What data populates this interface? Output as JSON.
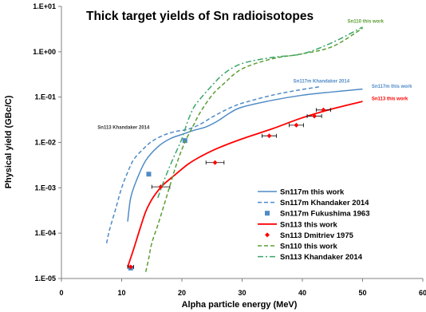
{
  "chart_data": {
    "type": "line",
    "title": "Thick target yields of Sn radioisotopes",
    "xlabel": "Alpha particle energy (MeV)",
    "ylabel": "Physical yield (GBc/C)",
    "xlim": [
      0,
      60
    ],
    "ylim": [
      1e-05,
      10
    ],
    "y_scale": "log",
    "grid": false,
    "legend_position": "bottom-right",
    "x_ticks": [
      "0",
      "10",
      "20",
      "30",
      "40",
      "50",
      "60"
    ],
    "y_ticks": [
      "1.E-05",
      "1.E-04",
      "1.E-03",
      "1.E-02",
      "1.E-01",
      "1.E+00",
      "1.E+01"
    ],
    "series": [
      {
        "name": "Sn117m this work",
        "style": "solid",
        "color": "#4f8bc6",
        "x": [
          11,
          11.5,
          12.5,
          14,
          16,
          18,
          20,
          22,
          24,
          26,
          28,
          30,
          35,
          40,
          45,
          50
        ],
        "y": [
          0.00018,
          0.0006,
          0.0015,
          0.004,
          0.008,
          0.012,
          0.015,
          0.0185,
          0.022,
          0.03,
          0.045,
          0.06,
          0.085,
          0.11,
          0.13,
          0.15
        ]
      },
      {
        "name": "Sn117m Khandaker 2014",
        "style": "dash",
        "color": "#4f8bc6",
        "x": [
          7.5,
          8,
          9,
          10,
          11,
          12,
          13.5,
          15,
          17,
          19,
          21,
          23,
          25,
          27,
          29,
          31,
          35,
          39,
          43
        ],
        "y": [
          6e-05,
          0.00012,
          0.00034,
          0.001,
          0.0022,
          0.0042,
          0.007,
          0.0105,
          0.0145,
          0.0175,
          0.0195,
          0.025,
          0.036,
          0.05,
          0.066,
          0.08,
          0.11,
          0.14,
          0.17
        ]
      },
      {
        "name": "Sn117m Fukushima 1963",
        "style": "markers",
        "marker": "square",
        "color": "#4f8bc6",
        "x": [
          11.5,
          14.5,
          20.5
        ],
        "y": [
          1.7e-05,
          0.002,
          0.011
        ]
      },
      {
        "name": "Sn113 this work",
        "style": "solid",
        "color": "#ff0000",
        "x": [
          11,
          12,
          13,
          14,
          15,
          16,
          17,
          19,
          21,
          23,
          26,
          30,
          35,
          40,
          45,
          50
        ],
        "y": [
          1.8e-05,
          4.5e-05,
          0.00012,
          0.0003,
          0.00055,
          0.00085,
          0.0012,
          0.002,
          0.0033,
          0.0048,
          0.0075,
          0.012,
          0.02,
          0.035,
          0.055,
          0.08
        ]
      },
      {
        "name": "Sn113 Dmitriev 1975",
        "style": "markers",
        "marker": "diamond",
        "color": "#ff0000",
        "x": [
          11.5,
          16.5,
          25.5,
          34.5,
          39,
          42,
          43.5
        ],
        "y": [
          1.8e-05,
          0.00105,
          0.0036,
          0.014,
          0.024,
          0.038,
          0.052
        ],
        "x_err": [
          0.5,
          1.5,
          1.5,
          1.2,
          1.2,
          1.2,
          1.2
        ]
      },
      {
        "name": "Sn110 this work",
        "style": "dash",
        "color": "#5a9e32",
        "x": [
          14,
          14.5,
          15,
          16,
          17,
          18,
          19,
          20,
          21,
          22,
          23,
          25,
          27,
          30,
          35,
          40,
          45,
          50
        ],
        "y": [
          1.4e-05,
          2.8e-05,
          6e-05,
          0.00015,
          0.0004,
          0.0011,
          0.003,
          0.007,
          0.014,
          0.025,
          0.045,
          0.11,
          0.2,
          0.42,
          0.7,
          0.9,
          1.3,
          3.3
        ]
      },
      {
        "name": "Sn113 Khandaker 2014",
        "style": "dashdot",
        "color": "#3aa66b",
        "x": [
          16,
          17,
          18,
          19,
          20,
          21,
          22,
          23,
          25,
          27,
          30,
          35,
          40,
          45,
          50
        ],
        "y": [
          0.0006,
          0.0014,
          0.003,
          0.006,
          0.012,
          0.03,
          0.06,
          0.09,
          0.18,
          0.33,
          0.55,
          0.75,
          0.9,
          1.6,
          3.5
        ]
      }
    ],
    "annotations": [
      {
        "text": "Sn110 this work",
        "x": 47.5,
        "y": 4.4,
        "color": "#5a9e32"
      },
      {
        "text": "Sn117m Khandaker 2014",
        "x": 38.5,
        "y": 0.21,
        "color": "#4f8bc6"
      },
      {
        "text": "Sn117m this work",
        "x": 51.5,
        "y": 0.16,
        "color": "#4f8bc6"
      },
      {
        "text": "Sn113 this work",
        "x": 51.5,
        "y": 0.085,
        "color": "#ff0000"
      },
      {
        "text": "Sn113 Khandaker 2014",
        "x": 6,
        "y": 0.02,
        "color": "#333333"
      }
    ]
  }
}
